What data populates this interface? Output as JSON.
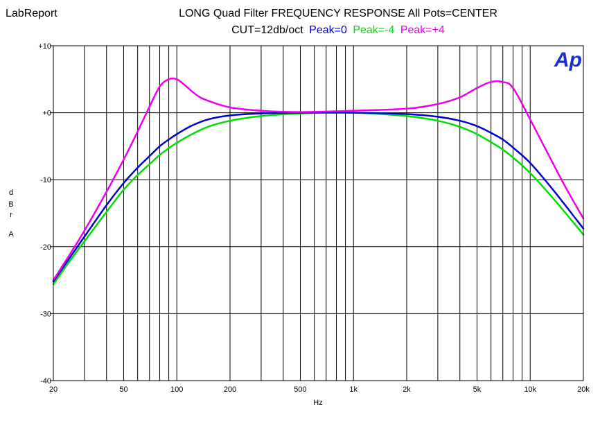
{
  "brand": "LabReport",
  "chart_data": {
    "type": "line",
    "title": "LONG Quad Filter FREQUENCY RESPONSE  All Pots=CENTER",
    "subtitle_prefix": "CUT=12db/oct",
    "xlabel": "Hz",
    "ylabel_chars": [
      "d",
      "B",
      "r",
      "A"
    ],
    "x_scale": "log",
    "xlim": [
      20,
      20000
    ],
    "ylim": [
      -40,
      10
    ],
    "grid": true,
    "logo_text": "Ap",
    "x_tick_labels": [
      {
        "value": 20,
        "label": "20"
      },
      {
        "value": 50,
        "label": "50"
      },
      {
        "value": 100,
        "label": "100"
      },
      {
        "value": 200,
        "label": "200"
      },
      {
        "value": 500,
        "label": "500"
      },
      {
        "value": 1000,
        "label": "1k"
      },
      {
        "value": 2000,
        "label": "2k"
      },
      {
        "value": 5000,
        "label": "5k"
      },
      {
        "value": 10000,
        "label": "10k"
      },
      {
        "value": 20000,
        "label": "20k"
      }
    ],
    "x_gridlines": [
      30,
      40,
      50,
      60,
      70,
      80,
      90,
      100,
      200,
      300,
      400,
      500,
      600,
      700,
      800,
      900,
      1000,
      2000,
      3000,
      4000,
      5000,
      6000,
      7000,
      8000,
      9000,
      10000
    ],
    "y_ticks": [
      {
        "value": 10,
        "label": "+10"
      },
      {
        "value": 0,
        "label": "+0"
      },
      {
        "value": -10,
        "label": "-10"
      },
      {
        "value": -20,
        "label": "-20"
      },
      {
        "value": -30,
        "label": "-30"
      },
      {
        "value": -40,
        "label": "-40"
      }
    ],
    "series": [
      {
        "name": "Peak=0",
        "color": "#0000cc",
        "x": [
          20,
          25,
          30,
          40,
          50,
          60,
          70,
          80,
          90,
          100,
          120,
          150,
          200,
          300,
          500,
          1000,
          2000,
          3000,
          4000,
          5000,
          6000,
          7000,
          8000,
          10000,
          13000,
          16000,
          20000
        ],
        "y": [
          -25.2,
          -21.5,
          -18.5,
          -13.8,
          -10.5,
          -8.2,
          -6.5,
          -5.0,
          -4.0,
          -3.2,
          -2.0,
          -1.0,
          -0.4,
          -0.1,
          0.0,
          0.0,
          -0.2,
          -0.6,
          -1.2,
          -2.0,
          -3.0,
          -4.0,
          -5.2,
          -7.5,
          -11.0,
          -14.0,
          -17.3
        ]
      },
      {
        "name": "Peak=-4",
        "color": "#00dd00",
        "x": [
          20,
          25,
          30,
          40,
          50,
          60,
          70,
          80,
          90,
          100,
          120,
          150,
          200,
          300,
          500,
          1000,
          2000,
          3000,
          4000,
          5000,
          6000,
          7000,
          8000,
          10000,
          13000,
          16000,
          20000
        ],
        "y": [
          -25.6,
          -22.0,
          -19.2,
          -14.8,
          -11.5,
          -9.3,
          -7.7,
          -6.3,
          -5.3,
          -4.5,
          -3.3,
          -2.1,
          -1.2,
          -0.5,
          -0.1,
          0.0,
          -0.5,
          -1.2,
          -2.1,
          -3.2,
          -4.4,
          -5.5,
          -6.7,
          -9.0,
          -12.3,
          -15.1,
          -18.2
        ]
      },
      {
        "name": "Peak=+4",
        "color": "#ee00ee",
        "x": [
          20,
          25,
          30,
          40,
          50,
          60,
          70,
          80,
          90,
          100,
          110,
          130,
          150,
          200,
          300,
          500,
          1000,
          2000,
          3000,
          4000,
          5000,
          6000,
          7000,
          8000,
          10000,
          13000,
          16000,
          20000
        ],
        "y": [
          -25.0,
          -21.0,
          -17.6,
          -11.8,
          -7.0,
          -2.8,
          0.9,
          3.9,
          5.0,
          5.0,
          4.2,
          2.6,
          1.8,
          0.8,
          0.3,
          0.1,
          0.3,
          0.6,
          1.3,
          2.3,
          3.7,
          4.6,
          4.6,
          3.7,
          -1.0,
          -6.8,
          -11.3,
          -15.8
        ]
      }
    ]
  }
}
